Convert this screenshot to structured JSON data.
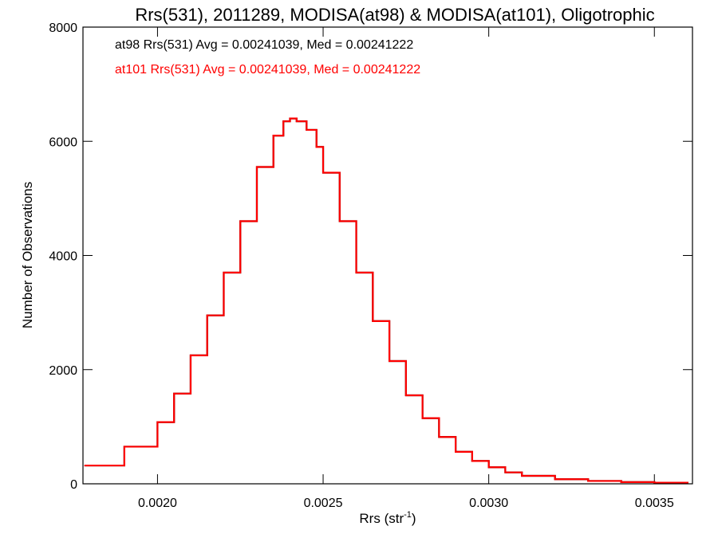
{
  "chart_data": {
    "type": "line",
    "title": "Rrs(531), 2011289, MODISA(at98) & MODISA(at101), Oligotrophic",
    "xlabel_main": "Rrs (str",
    "xlabel_sup": "-1",
    "xlabel_close": ")",
    "ylabel": "Number of Observations",
    "xlim": [
      0.001775,
      0.003615
    ],
    "ylim": [
      0,
      8000
    ],
    "x_ticks": [
      0.002,
      0.0025,
      0.003,
      0.0035
    ],
    "x_tick_labels": [
      "0.0020",
      "0.0025",
      "0.0030",
      "0.0035"
    ],
    "y_ticks": [
      0,
      2000,
      4000,
      6000,
      8000
    ],
    "y_tick_labels": [
      "0",
      "2000",
      "4000",
      "6000",
      "8000"
    ],
    "grid": false,
    "legend_position": "top-left",
    "annotations": [
      {
        "text": "at98 Rrs(531) Avg = 0.00241039, Med = 0.00241222",
        "color": "#000000"
      },
      {
        "text": "at101 Rrs(531) Avg = 0.00241039, Med = 0.00241222",
        "color": "#ff0000"
      }
    ],
    "series": [
      {
        "color": "#000000",
        "x": [
          0.00178,
          0.0019,
          0.002,
          0.00205,
          0.0021,
          0.00215,
          0.0022,
          0.00225,
          0.0023,
          0.00235,
          0.00238,
          0.0024,
          0.00242,
          0.00245,
          0.00248,
          0.0025,
          0.00255,
          0.0026,
          0.00265,
          0.0027,
          0.00275,
          0.0028,
          0.00285,
          0.0029,
          0.00295,
          0.003,
          0.00305,
          0.0031,
          0.0032,
          0.0033,
          0.0034,
          0.0035,
          0.0036
        ],
        "y": [
          320,
          650,
          1080,
          1580,
          2250,
          2950,
          3700,
          4600,
          5550,
          6100,
          6350,
          6400,
          6350,
          6200,
          5900,
          5450,
          4600,
          3700,
          2850,
          2150,
          1550,
          1150,
          820,
          560,
          400,
          290,
          200,
          140,
          80,
          50,
          30,
          20,
          10
        ]
      },
      {
        "color": "#ff0000",
        "x": [
          0.00178,
          0.0019,
          0.002,
          0.00205,
          0.0021,
          0.00215,
          0.0022,
          0.00225,
          0.0023,
          0.00235,
          0.00238,
          0.0024,
          0.00242,
          0.00245,
          0.00248,
          0.0025,
          0.00255,
          0.0026,
          0.00265,
          0.0027,
          0.00275,
          0.0028,
          0.00285,
          0.0029,
          0.00295,
          0.003,
          0.00305,
          0.0031,
          0.0032,
          0.0033,
          0.0034,
          0.0035,
          0.0036
        ],
        "y": [
          320,
          650,
          1080,
          1580,
          2250,
          2950,
          3700,
          4600,
          5550,
          6100,
          6350,
          6400,
          6350,
          6200,
          5900,
          5450,
          4600,
          3700,
          2850,
          2150,
          1550,
          1150,
          820,
          560,
          400,
          290,
          200,
          140,
          80,
          50,
          30,
          20,
          10
        ]
      }
    ]
  }
}
